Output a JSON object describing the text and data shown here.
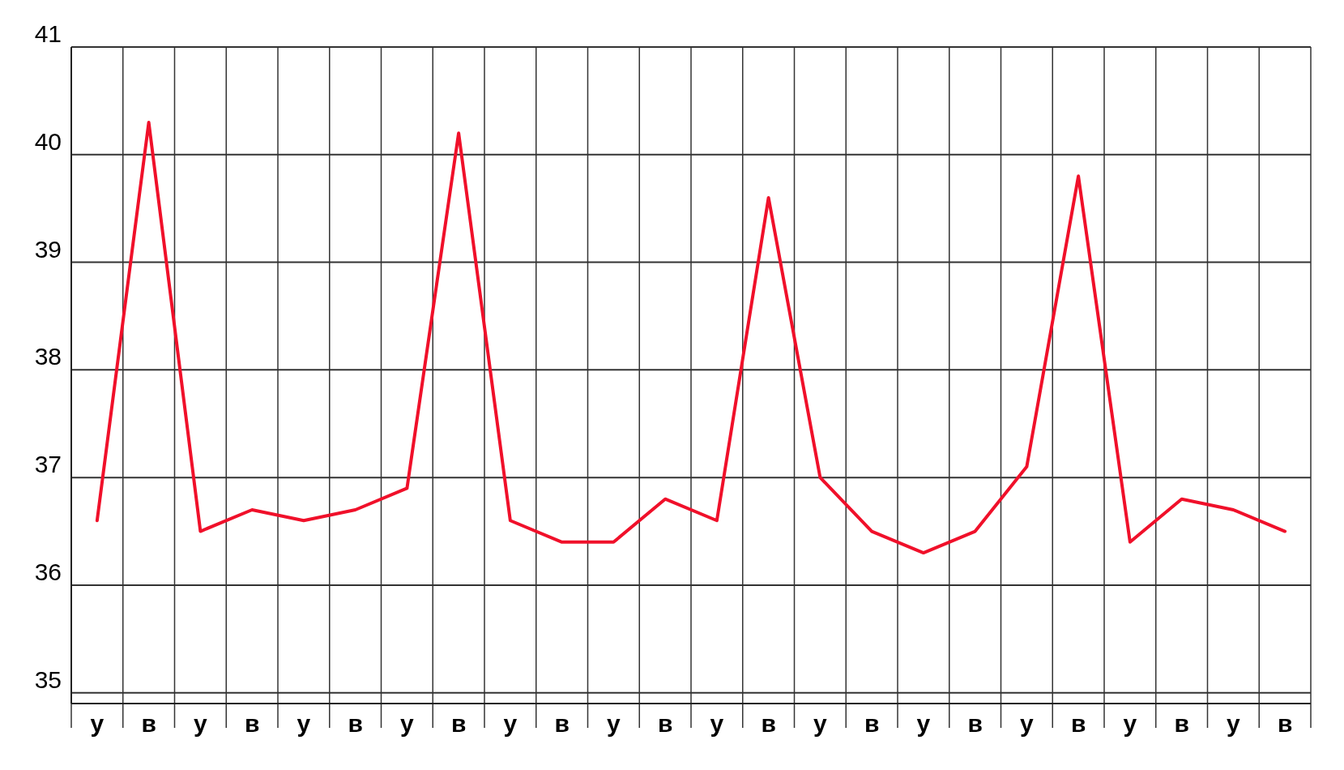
{
  "chart_data": {
    "type": "line",
    "categories": [
      "у",
      "в",
      "у",
      "в",
      "у",
      "в",
      "у",
      "в",
      "у",
      "в",
      "у",
      "в",
      "у",
      "в",
      "у",
      "в",
      "у",
      "в",
      "у",
      "в",
      "у",
      "в",
      "у",
      "в"
    ],
    "series": [
      {
        "color": "#f0102a",
        "values": [
          36.6,
          40.3,
          36.5,
          36.7,
          36.6,
          36.7,
          36.9,
          40.2,
          36.6,
          36.4,
          36.4,
          36.8,
          36.6,
          39.6,
          37.0,
          36.5,
          36.3,
          36.5,
          37.1,
          39.8,
          36.4,
          36.8,
          36.7,
          36.5
        ]
      }
    ],
    "ylim": [
      34.9,
      41
    ],
    "yticks": [
      35,
      36,
      37,
      38,
      39,
      40,
      41
    ],
    "grid": true,
    "marker": "none",
    "line_style": "solid"
  }
}
